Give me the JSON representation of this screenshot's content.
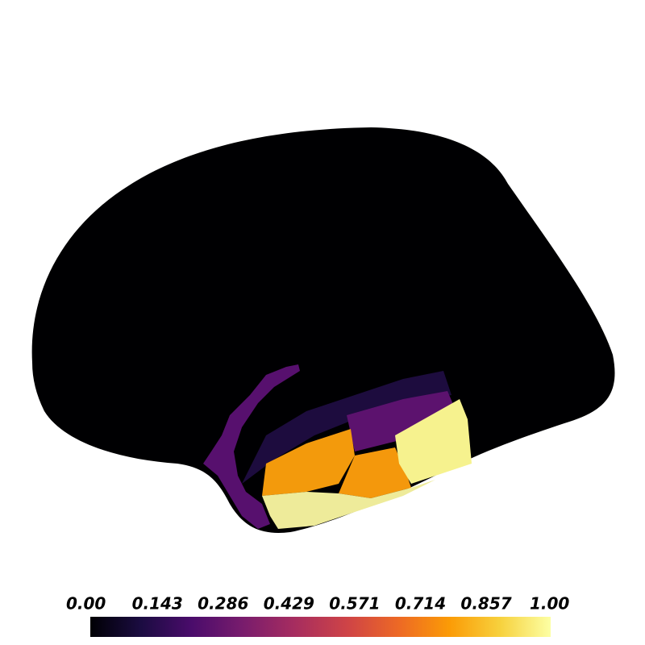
{
  "colorbar": {
    "ticks": [
      "0.00",
      "0.143",
      "0.286",
      "0.429",
      "0.571",
      "0.714",
      "0.857",
      "1.00"
    ]
  }
}
